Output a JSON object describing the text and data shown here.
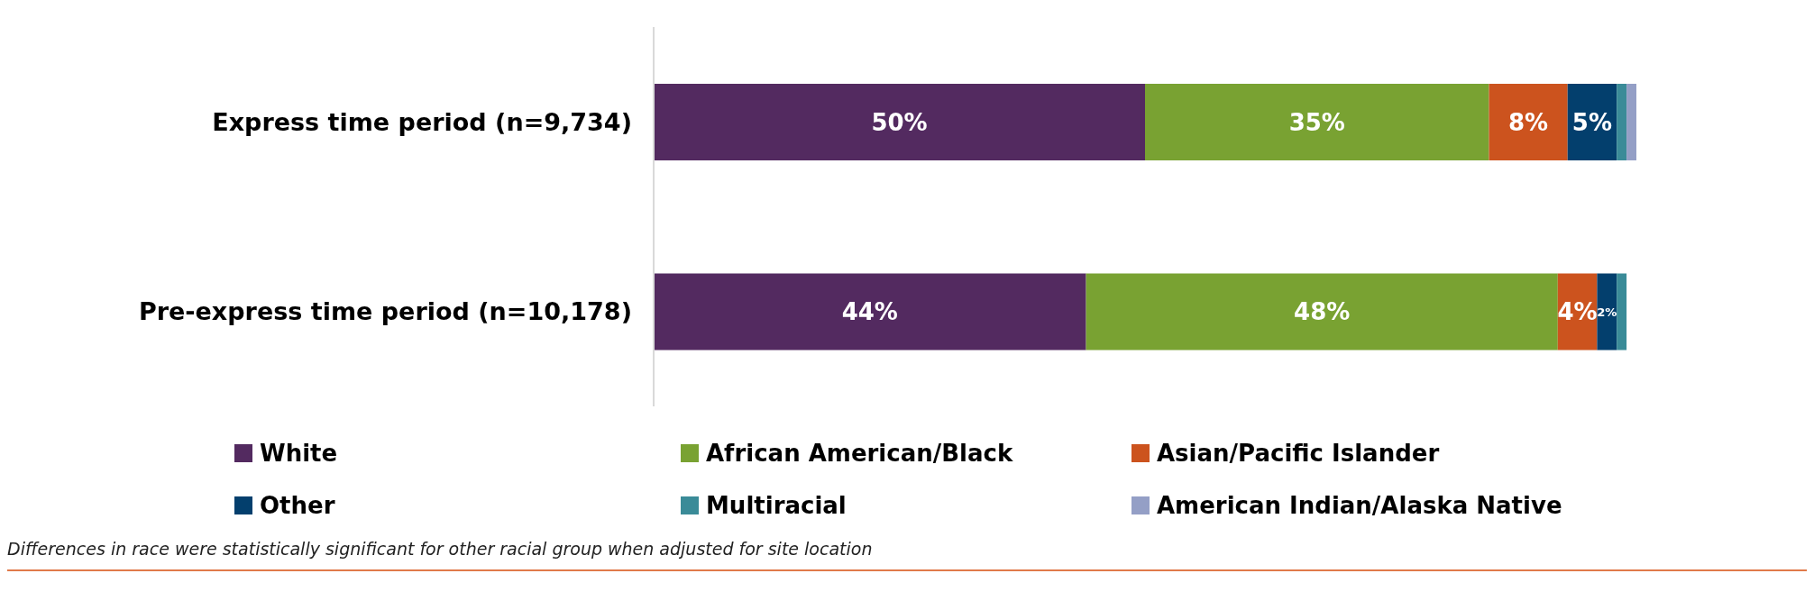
{
  "chart_data": {
    "type": "bar",
    "orientation": "horizontal",
    "stacked": true,
    "categories": [
      "Express time period (n=9,734)",
      "Pre-express time period (n=10,178)"
    ],
    "series": [
      {
        "name": "White",
        "color": "#532a60",
        "values": [
          50,
          44
        ],
        "value_labels": [
          "50%",
          "44%"
        ]
      },
      {
        "name": "African American/Black",
        "color": "#79a232",
        "values": [
          35,
          48
        ],
        "value_labels": [
          "35%",
          "48%"
        ]
      },
      {
        "name": "Asian/Pacific Islander",
        "color": "#cc531e",
        "values": [
          8,
          4
        ],
        "value_labels": [
          "8%",
          "4%"
        ]
      },
      {
        "name": "Other",
        "color": "#033f6d",
        "values": [
          5,
          2
        ],
        "value_labels": [
          "5%",
          "2%"
        ]
      },
      {
        "name": "Multiracial",
        "color": "#3a8b98",
        "values": [
          1,
          1
        ],
        "value_labels": [
          null,
          null
        ]
      },
      {
        "name": "American Indian/Alaska Native",
        "color": "#949fc6",
        "values": [
          1,
          0
        ],
        "value_labels": [
          null,
          null
        ]
      }
    ],
    "xlim": [
      0,
      100
    ],
    "tick_labels": "y",
    "legend": "bottom",
    "annotations": [
      "Differences in race were statistically significant for other racial group when adjusted for site location"
    ]
  }
}
